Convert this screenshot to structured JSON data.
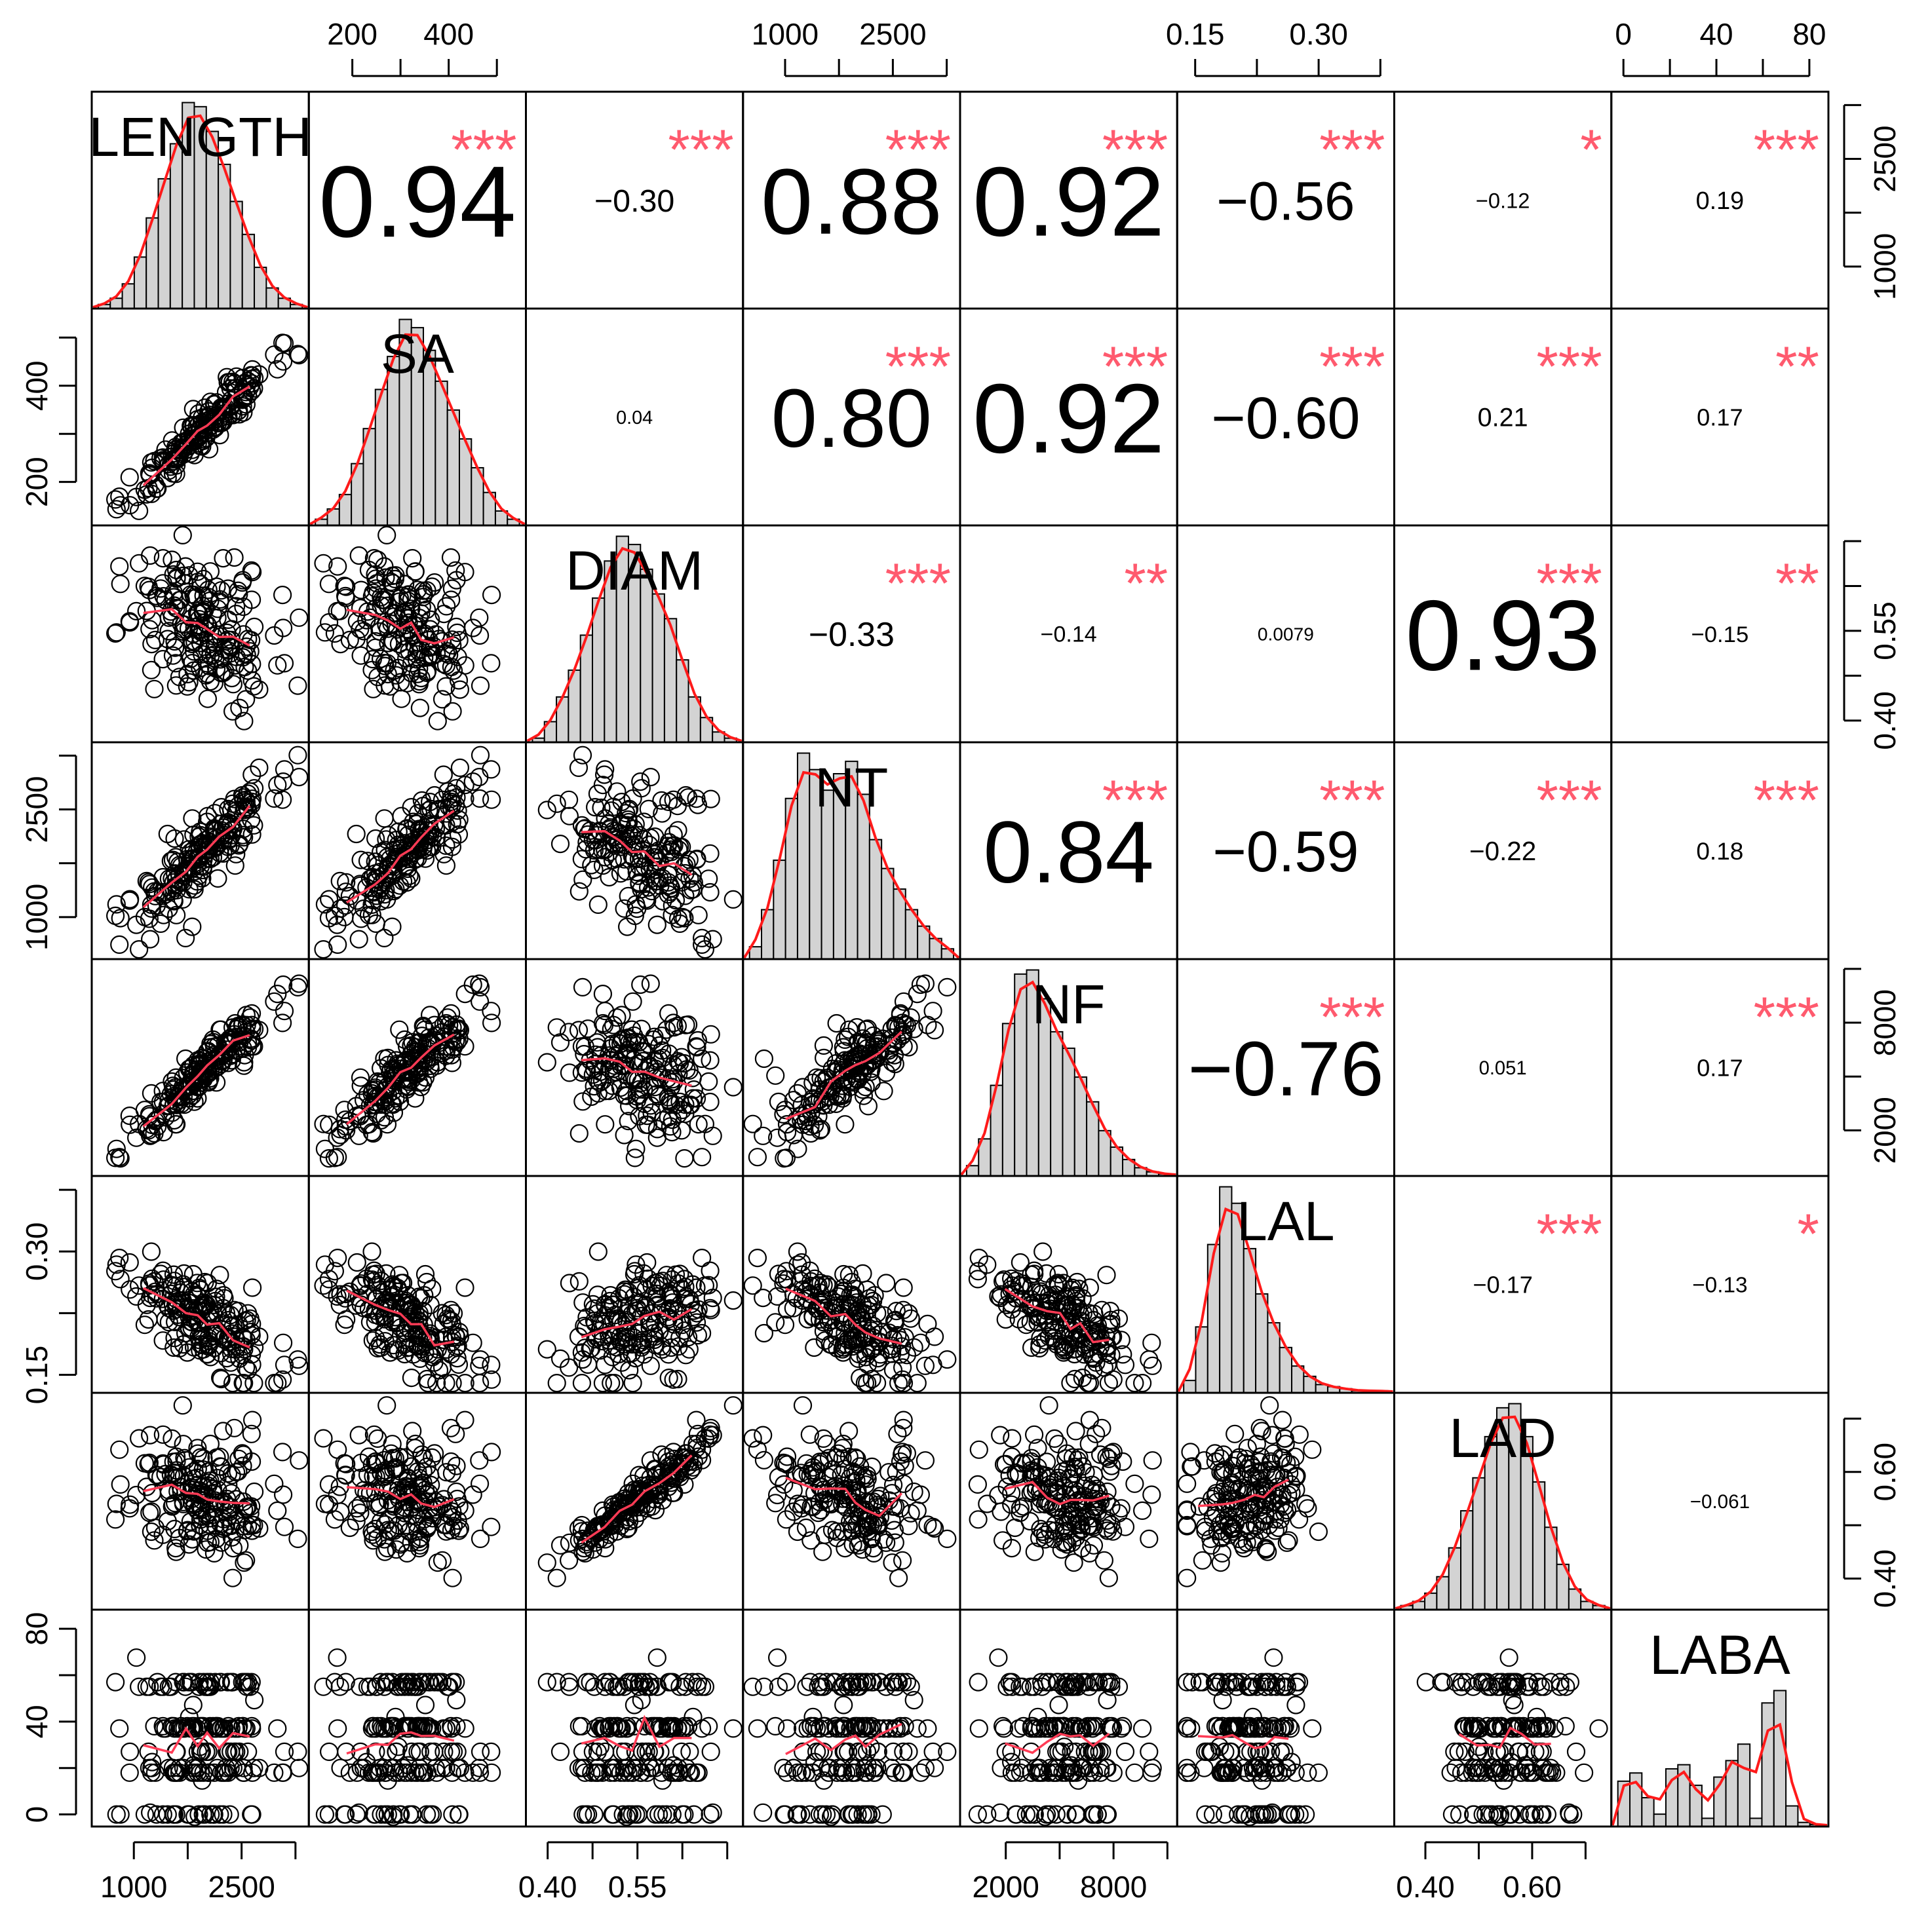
{
  "chart_data": {
    "type": "scatter",
    "title": "",
    "variables": [
      "LENGTH",
      "SA",
      "DIAM",
      "NT",
      "NF",
      "LAL",
      "LAD",
      "LABA"
    ],
    "ranges": {
      "LENGTH": [
        550,
        3300
      ],
      "SA": [
        130,
        540
      ],
      "DIAM": [
        0.38,
        0.71
      ],
      "NT": [
        550,
        3300
      ],
      "NF": [
        0,
        11000
      ],
      "LAL": [
        0.14,
        0.38
      ],
      "LAD": [
        0.36,
        0.73
      ],
      "LABA": [
        -1,
        84
      ]
    },
    "axis_ticks": {
      "LENGTH": [
        1000,
        2500
      ],
      "SA": [
        200,
        400
      ],
      "DIAM": [
        0.4,
        0.55
      ],
      "NT": [
        1000,
        2500
      ],
      "NF": [
        2000,
        8000
      ],
      "LAL": [
        0.15,
        0.3
      ],
      "LAD": [
        0.4,
        0.6
      ],
      "LABA": [
        0,
        40,
        80
      ]
    },
    "axis_tick_labels": {
      "top": [
        {
          "var": "SA",
          "labels": [
            "200",
            "400"
          ]
        },
        {
          "var": "NT",
          "labels": [
            "1000",
            "2500"
          ]
        },
        {
          "var": "LAL",
          "labels": [
            "0.15",
            "0.30"
          ]
        },
        {
          "var": "LABA",
          "labels": [
            "0",
            "40",
            "80"
          ]
        }
      ],
      "bottom": [
        {
          "var": "LENGTH",
          "labels": [
            "1000",
            "2500"
          ]
        },
        {
          "var": "DIAM",
          "labels": [
            "0.40",
            "0.55"
          ]
        },
        {
          "var": "NF",
          "labels": [
            "2000",
            "8000"
          ]
        },
        {
          "var": "LAD",
          "labels": [
            "0.40",
            "0.60"
          ]
        }
      ],
      "left": [
        {
          "var": "SA",
          "labels": [
            "200",
            "400"
          ]
        },
        {
          "var": "NT",
          "labels": [
            "1000",
            "2500"
          ]
        },
        {
          "var": "LAL",
          "labels": [
            "0.15",
            "0.30"
          ]
        },
        {
          "var": "LABA",
          "labels": [
            "0",
            "40",
            "80"
          ]
        }
      ],
      "right": [
        {
          "var": "LENGTH",
          "labels": [
            "1000",
            "2500"
          ]
        },
        {
          "var": "DIAM",
          "labels": [
            "0.40",
            "0.55"
          ]
        },
        {
          "var": "NF",
          "labels": [
            "2000",
            "8000"
          ]
        },
        {
          "var": "LAD",
          "labels": [
            "0.40",
            "0.60"
          ]
        }
      ]
    },
    "correlations": [
      {
        "row": 0,
        "col": 1,
        "label": "0.94",
        "stars": "***"
      },
      {
        "row": 0,
        "col": 2,
        "label": "−0.30",
        "stars": "***"
      },
      {
        "row": 0,
        "col": 3,
        "label": "0.88",
        "stars": "***"
      },
      {
        "row": 0,
        "col": 4,
        "label": "0.92",
        "stars": "***"
      },
      {
        "row": 0,
        "col": 5,
        "label": "−0.56",
        "stars": "***"
      },
      {
        "row": 0,
        "col": 6,
        "label": "−0.12",
        "stars": "*"
      },
      {
        "row": 0,
        "col": 7,
        "label": "0.19",
        "stars": "***"
      },
      {
        "row": 1,
        "col": 2,
        "label": "0.04",
        "stars": ""
      },
      {
        "row": 1,
        "col": 3,
        "label": "0.80",
        "stars": "***"
      },
      {
        "row": 1,
        "col": 4,
        "label": "0.92",
        "stars": "***"
      },
      {
        "row": 1,
        "col": 5,
        "label": "−0.60",
        "stars": "***"
      },
      {
        "row": 1,
        "col": 6,
        "label": "0.21",
        "stars": "***"
      },
      {
        "row": 1,
        "col": 7,
        "label": "0.17",
        "stars": "**"
      },
      {
        "row": 2,
        "col": 3,
        "label": "−0.33",
        "stars": "***"
      },
      {
        "row": 2,
        "col": 4,
        "label": "−0.14",
        "stars": "**"
      },
      {
        "row": 2,
        "col": 5,
        "label": "0.0079",
        "stars": ""
      },
      {
        "row": 2,
        "col": 6,
        "label": "0.93",
        "stars": "***"
      },
      {
        "row": 2,
        "col": 7,
        "label": "−0.15",
        "stars": "**"
      },
      {
        "row": 3,
        "col": 4,
        "label": "0.84",
        "stars": "***"
      },
      {
        "row": 3,
        "col": 5,
        "label": "−0.59",
        "stars": "***"
      },
      {
        "row": 3,
        "col": 6,
        "label": "−0.22",
        "stars": "***"
      },
      {
        "row": 3,
        "col": 7,
        "label": "0.18",
        "stars": "***"
      },
      {
        "row": 4,
        "col": 5,
        "label": "−0.76",
        "stars": "***"
      },
      {
        "row": 4,
        "col": 6,
        "label": "0.051",
        "stars": ""
      },
      {
        "row": 4,
        "col": 7,
        "label": "0.17",
        "stars": "***"
      },
      {
        "row": 5,
        "col": 6,
        "label": "−0.17",
        "stars": "***"
      },
      {
        "row": 5,
        "col": 7,
        "label": "−0.13",
        "stars": "*"
      },
      {
        "row": 6,
        "col": 7,
        "label": "−0.061",
        "stars": ""
      }
    ],
    "histograms": {
      "LENGTH": [
        2,
        5,
        12,
        25,
        44,
        63,
        80,
        100,
        98,
        86,
        70,
        52,
        36,
        20,
        10,
        5,
        2
      ],
      "SA": [
        3,
        8,
        15,
        30,
        47,
        66,
        82,
        100,
        96,
        85,
        70,
        56,
        42,
        28,
        16,
        7,
        3
      ],
      "DIAM": [
        2,
        10,
        22,
        35,
        52,
        70,
        88,
        100,
        96,
        84,
        72,
        60,
        40,
        22,
        12,
        5,
        2
      ],
      "NT": [
        6,
        24,
        48,
        78,
        100,
        92,
        82,
        90,
        96,
        80,
        58,
        44,
        34,
        24,
        16,
        10,
        5
      ],
      "NF": [
        5,
        18,
        44,
        74,
        98,
        100,
        86,
        70,
        62,
        48,
        36,
        22,
        14,
        8,
        4,
        2,
        1
      ],
      "LAL": [
        6,
        32,
        72,
        100,
        92,
        70,
        48,
        34,
        22,
        13,
        8,
        4,
        3,
        2,
        1,
        1,
        1
      ],
      "LAD": [
        2,
        4,
        8,
        16,
        30,
        48,
        64,
        84,
        98,
        100,
        84,
        62,
        40,
        22,
        10,
        4,
        2
      ],
      "LABA": [
        22,
        26,
        14,
        6,
        28,
        30,
        20,
        4,
        24,
        32,
        40,
        4,
        60,
        66,
        10,
        2,
        1
      ]
    }
  }
}
